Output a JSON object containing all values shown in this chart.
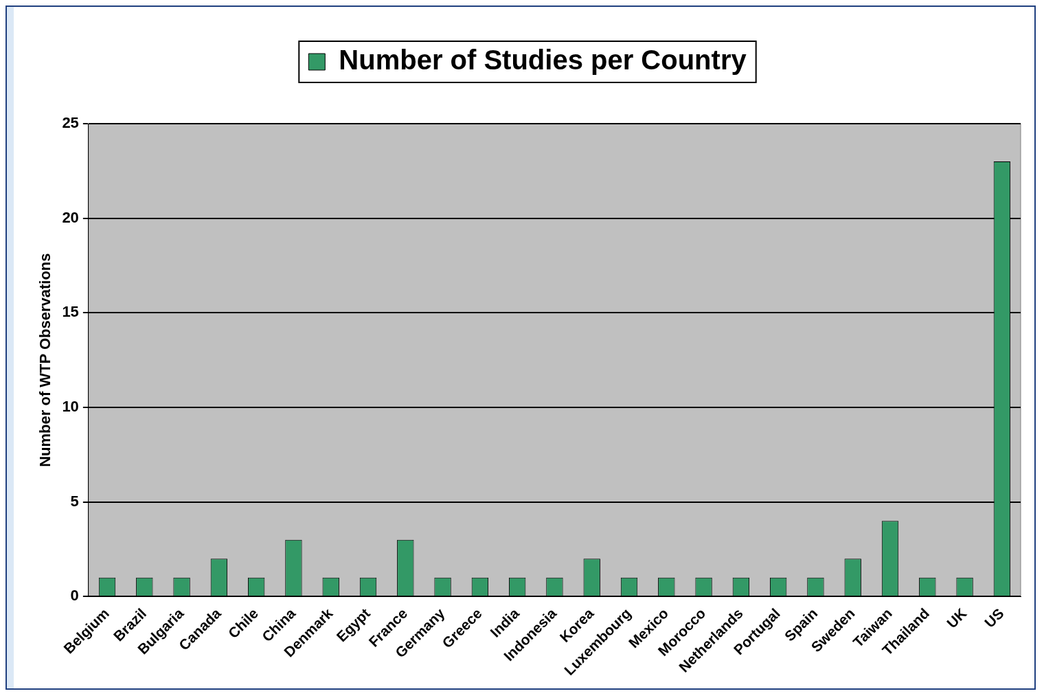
{
  "chart_data": {
    "type": "bar",
    "ylabel": "Number of WTP Observations",
    "categories": [
      "Belgium",
      "Brazil",
      "Bulgaria",
      "Canada",
      "Chile",
      "China",
      "Denmark",
      "Egypt",
      "France",
      "Germany",
      "Greece",
      "India",
      "Indonesia",
      "Korea",
      "Luxembourg",
      "Mexico",
      "Morocco",
      "Netherlands",
      "Portugal",
      "Spain",
      "Sweden",
      "Taiwan",
      "Thailand",
      "UK",
      "US"
    ],
    "series": [
      {
        "name": "Number of Studies per Country",
        "color": "#339966",
        "values": [
          1,
          1,
          1,
          2,
          1,
          3,
          1,
          1,
          3,
          1,
          1,
          1,
          1,
          2,
          1,
          1,
          1,
          1,
          1,
          1,
          2,
          4,
          1,
          1,
          23
        ]
      }
    ],
    "ylim": [
      0,
      25
    ],
    "yticks": [
      0,
      5,
      10,
      15,
      20,
      25
    ],
    "grid": "y",
    "legend": "top"
  }
}
